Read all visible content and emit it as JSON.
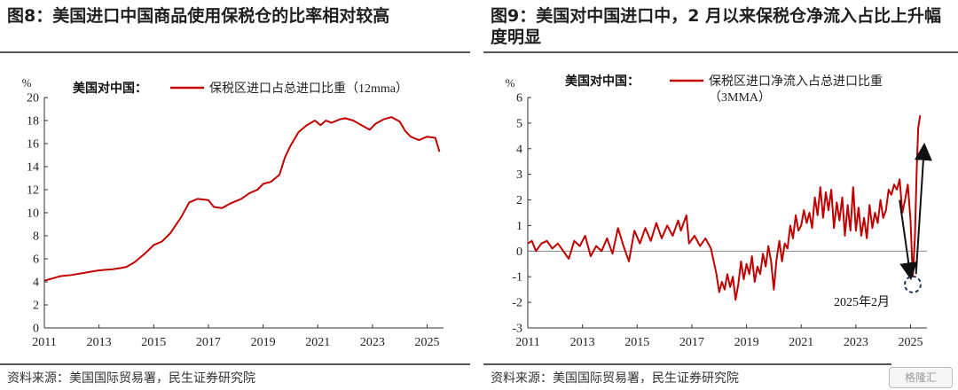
{
  "left": {
    "title": "图8：美国进口中国商品使用保税仓的比率相对较高",
    "source": "资料来源：美国国际贸易署，民生证券研究院",
    "chart_data": {
      "type": "line",
      "unit": "%",
      "legend_prefix": "美国对中国：",
      "series_name": "保税区进口占总进口比重（12mma）",
      "color": "#c00000",
      "ylim": [
        0,
        20
      ],
      "yticks": [
        0,
        2,
        4,
        6,
        8,
        10,
        12,
        14,
        16,
        18,
        20
      ],
      "xlim": [
        2011.0,
        2025.6
      ],
      "xticks": [
        2011,
        2013,
        2015,
        2017,
        2019,
        2021,
        2023,
        2025
      ],
      "points": [
        [
          2011.0,
          4.1
        ],
        [
          2011.3,
          4.3
        ],
        [
          2011.6,
          4.5
        ],
        [
          2012.0,
          4.6
        ],
        [
          2012.5,
          4.8
        ],
        [
          2013.0,
          5.0
        ],
        [
          2013.5,
          5.1
        ],
        [
          2013.8,
          5.2
        ],
        [
          2014.0,
          5.3
        ],
        [
          2014.3,
          5.7
        ],
        [
          2014.7,
          6.5
        ],
        [
          2015.0,
          7.2
        ],
        [
          2015.3,
          7.5
        ],
        [
          2015.6,
          8.2
        ],
        [
          2016.0,
          9.6
        ],
        [
          2016.3,
          10.9
        ],
        [
          2016.6,
          11.2
        ],
        [
          2017.0,
          11.1
        ],
        [
          2017.2,
          10.5
        ],
        [
          2017.5,
          10.4
        ],
        [
          2017.8,
          10.8
        ],
        [
          2018.2,
          11.2
        ],
        [
          2018.5,
          11.7
        ],
        [
          2018.8,
          12.0
        ],
        [
          2019.0,
          12.5
        ],
        [
          2019.3,
          12.7
        ],
        [
          2019.6,
          13.3
        ],
        [
          2019.8,
          14.8
        ],
        [
          2020.0,
          15.8
        ],
        [
          2020.3,
          17.0
        ],
        [
          2020.6,
          17.6
        ],
        [
          2020.9,
          18.0
        ],
        [
          2021.1,
          17.6
        ],
        [
          2021.3,
          18.0
        ],
        [
          2021.5,
          17.8
        ],
        [
          2021.8,
          18.1
        ],
        [
          2022.0,
          18.2
        ],
        [
          2022.3,
          18.0
        ],
        [
          2022.6,
          17.6
        ],
        [
          2022.9,
          17.2
        ],
        [
          2023.1,
          17.7
        ],
        [
          2023.4,
          18.1
        ],
        [
          2023.7,
          18.3
        ],
        [
          2024.0,
          17.9
        ],
        [
          2024.2,
          17.1
        ],
        [
          2024.4,
          16.6
        ],
        [
          2024.7,
          16.3
        ],
        [
          2025.0,
          16.6
        ],
        [
          2025.3,
          16.5
        ],
        [
          2025.45,
          15.3
        ]
      ]
    }
  },
  "right": {
    "title": "图9：美国对中国进口中，2 月以来保税仓净流入占比上升幅度明显",
    "source": "资料来源：美国国际贸易署，民生证券研究院",
    "watermark": "格隆汇",
    "chart_data": {
      "type": "line",
      "unit": "%",
      "legend_prefix": "美国对中国：",
      "series_name_line1": "保税区进口净流入占总进口比重",
      "series_name_line2": "（3MMA）",
      "color": "#c00000",
      "ylim": [
        -3,
        6
      ],
      "yticks": [
        -3,
        -2,
        -1,
        0,
        1,
        2,
        3,
        4,
        5,
        6
      ],
      "xlim": [
        2011.0,
        2025.6
      ],
      "xticks": [
        2011,
        2013,
        2015,
        2017,
        2019,
        2021,
        2023,
        2025
      ],
      "annotation": "2025年2月",
      "annotation_point": [
        2025.08,
        -1.3
      ],
      "arrows": [
        {
          "from": [
            2024.6,
            2.0
          ],
          "to": [
            2025.0,
            -1.0
          ]
        },
        {
          "from": [
            2025.2,
            -0.9
          ],
          "to": [
            2025.5,
            4.1
          ]
        }
      ],
      "points": [
        [
          2011.0,
          0.3
        ],
        [
          2011.15,
          0.4
        ],
        [
          2011.3,
          0.0
        ],
        [
          2011.5,
          0.3
        ],
        [
          2011.7,
          0.4
        ],
        [
          2011.9,
          0.1
        ],
        [
          2012.1,
          0.3
        ],
        [
          2012.3,
          0.0
        ],
        [
          2012.5,
          -0.3
        ],
        [
          2012.7,
          0.4
        ],
        [
          2012.9,
          0.2
        ],
        [
          2013.1,
          0.6
        ],
        [
          2013.3,
          -0.2
        ],
        [
          2013.5,
          0.2
        ],
        [
          2013.7,
          0.0
        ],
        [
          2013.9,
          0.5
        ],
        [
          2014.1,
          -0.1
        ],
        [
          2014.3,
          0.9
        ],
        [
          2014.5,
          0.2
        ],
        [
          2014.7,
          -0.4
        ],
        [
          2014.9,
          0.8
        ],
        [
          2015.1,
          0.3
        ],
        [
          2015.3,
          0.9
        ],
        [
          2015.5,
          0.4
        ],
        [
          2015.7,
          1.1
        ],
        [
          2015.9,
          0.5
        ],
        [
          2016.1,
          1.0
        ],
        [
          2016.3,
          0.6
        ],
        [
          2016.5,
          1.2
        ],
        [
          2016.6,
          0.8
        ],
        [
          2016.8,
          1.4
        ],
        [
          2016.9,
          0.3
        ],
        [
          2017.1,
          0.6
        ],
        [
          2017.3,
          0.2
        ],
        [
          2017.5,
          0.5
        ],
        [
          2017.7,
          0.1
        ],
        [
          2017.9,
          -0.9
        ],
        [
          2018.0,
          -1.6
        ],
        [
          2018.1,
          -1.2
        ],
        [
          2018.2,
          -1.5
        ],
        [
          2018.3,
          -0.9
        ],
        [
          2018.4,
          -1.4
        ],
        [
          2018.5,
          -1.0
        ],
        [
          2018.6,
          -1.9
        ],
        [
          2018.7,
          -1.3
        ],
        [
          2018.8,
          -0.4
        ],
        [
          2018.9,
          -1.1
        ],
        [
          2019.0,
          -0.5
        ],
        [
          2019.1,
          -0.9
        ],
        [
          2019.2,
          -0.2
        ],
        [
          2019.3,
          -1.2
        ],
        [
          2019.4,
          -0.6
        ],
        [
          2019.5,
          -0.9
        ],
        [
          2019.6,
          -0.1
        ],
        [
          2019.7,
          -0.6
        ],
        [
          2019.8,
          0.2
        ],
        [
          2019.9,
          -0.4
        ],
        [
          2020.0,
          -1.5
        ],
        [
          2020.1,
          -0.3
        ],
        [
          2020.2,
          0.4
        ],
        [
          2020.3,
          -0.4
        ],
        [
          2020.4,
          0.3
        ],
        [
          2020.5,
          0.1
        ],
        [
          2020.6,
          1.0
        ],
        [
          2020.7,
          0.5
        ],
        [
          2020.8,
          1.4
        ],
        [
          2020.9,
          0.8
        ],
        [
          2021.0,
          1.0
        ],
        [
          2021.1,
          1.6
        ],
        [
          2021.2,
          1.1
        ],
        [
          2021.3,
          1.5
        ],
        [
          2021.4,
          0.9
        ],
        [
          2021.5,
          2.1
        ],
        [
          2021.6,
          1.4
        ],
        [
          2021.7,
          2.5
        ],
        [
          2021.8,
          1.3
        ],
        [
          2021.9,
          2.3
        ],
        [
          2022.0,
          1.6
        ],
        [
          2022.1,
          2.4
        ],
        [
          2022.2,
          0.9
        ],
        [
          2022.3,
          1.9
        ],
        [
          2022.4,
          1.2
        ],
        [
          2022.5,
          2.1
        ],
        [
          2022.6,
          0.6
        ],
        [
          2022.7,
          1.8
        ],
        [
          2022.8,
          0.8
        ],
        [
          2022.9,
          2.5
        ],
        [
          2023.0,
          0.8
        ],
        [
          2023.1,
          1.7
        ],
        [
          2023.2,
          0.6
        ],
        [
          2023.3,
          1.3
        ],
        [
          2023.4,
          0.5
        ],
        [
          2023.5,
          1.8
        ],
        [
          2023.6,
          0.9
        ],
        [
          2023.7,
          1.5
        ],
        [
          2023.8,
          1.1
        ],
        [
          2023.9,
          2.0
        ],
        [
          2024.0,
          1.3
        ],
        [
          2024.1,
          1.6
        ],
        [
          2024.2,
          2.4
        ],
        [
          2024.3,
          2.2
        ],
        [
          2024.4,
          2.6
        ],
        [
          2024.5,
          2.4
        ],
        [
          2024.6,
          2.8
        ],
        [
          2024.7,
          1.5
        ],
        [
          2024.8,
          2.0
        ],
        [
          2024.9,
          2.6
        ],
        [
          2025.0,
          1.2
        ],
        [
          2025.08,
          -1.0
        ],
        [
          2025.16,
          0.5
        ],
        [
          2025.22,
          3.0
        ],
        [
          2025.28,
          4.8
        ],
        [
          2025.35,
          5.3
        ]
      ]
    }
  }
}
